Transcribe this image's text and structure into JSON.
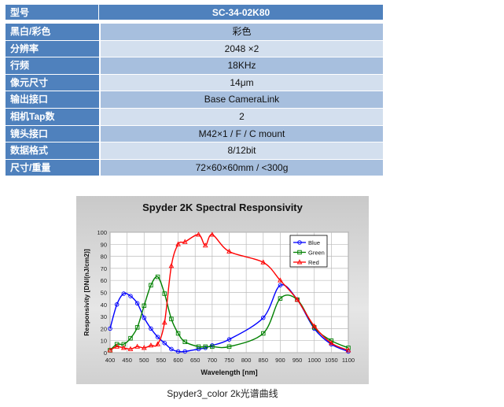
{
  "spec_table": {
    "header": {
      "label": "型号",
      "value": "SC-34-02K80"
    },
    "rows": [
      {
        "label": "黑白/彩色",
        "value": "彩色"
      },
      {
        "label": "分辨率",
        "value": "2048 ×2"
      },
      {
        "label": "行频",
        "value": "18KHz"
      },
      {
        "label": "像元尺寸",
        "value": "14μm"
      },
      {
        "label": "输出接口",
        "value": "Base CameraLink"
      },
      {
        "label": "相机Tap数",
        "value": "2"
      },
      {
        "label": "镜头接口",
        "value": "M42×1 / F / C mount"
      },
      {
        "label": "数据格式",
        "value": "8/12bit"
      },
      {
        "label": "尺寸/重量",
        "value": "72×60×60mm / <300g"
      }
    ]
  },
  "caption": "Spyder3_color 2k光谱曲线",
  "chart_data": {
    "type": "line",
    "title": "Spyder 2K Spectral Responsivity",
    "xlabel": "Wavelength [nm]",
    "ylabel": "Responsivity [DN/(nJ/cm2)]",
    "xlim": [
      400,
      1100
    ],
    "ylim": [
      0,
      100
    ],
    "xticks": [
      400,
      450,
      500,
      550,
      600,
      650,
      700,
      750,
      800,
      850,
      900,
      950,
      1000,
      1050,
      1100
    ],
    "yticks": [
      0,
      10,
      20,
      30,
      40,
      50,
      60,
      70,
      80,
      90,
      100
    ],
    "grid": true,
    "legend": "top-right",
    "series": [
      {
        "name": "Blue",
        "color": "#0000ff",
        "marker": "circle",
        "x": [
          400,
          420,
          440,
          460,
          480,
          500,
          520,
          540,
          560,
          580,
          600,
          620,
          660,
          680,
          700,
          750,
          850,
          900,
          950,
          1000,
          1050,
          1100
        ],
        "y": [
          20,
          40,
          49,
          47,
          41,
          29,
          20,
          13,
          8,
          3,
          1,
          1,
          3,
          4,
          6,
          11,
          29,
          56,
          44,
          20,
          7,
          1
        ]
      },
      {
        "name": "Green",
        "color": "#008000",
        "marker": "square",
        "x": [
          400,
          420,
          440,
          460,
          480,
          500,
          520,
          540,
          560,
          580,
          600,
          620,
          660,
          680,
          700,
          750,
          850,
          900,
          950,
          1000,
          1050,
          1100
        ],
        "y": [
          2,
          7,
          7,
          12,
          21,
          39,
          56,
          63,
          49,
          28,
          16,
          9,
          5,
          5,
          5,
          5,
          16,
          45,
          44,
          21,
          10,
          4
        ]
      },
      {
        "name": "Red",
        "color": "#ff0000",
        "marker": "triangle",
        "x": [
          400,
          420,
          440,
          460,
          480,
          500,
          520,
          540,
          560,
          580,
          600,
          620,
          660,
          680,
          700,
          750,
          850,
          900,
          950,
          1000,
          1050,
          1100
        ],
        "y": [
          2,
          5,
          4,
          3,
          5,
          4,
          6,
          7,
          25,
          72,
          90,
          92,
          98,
          89,
          98,
          84,
          75,
          60,
          44,
          22,
          8,
          2
        ]
      }
    ]
  }
}
